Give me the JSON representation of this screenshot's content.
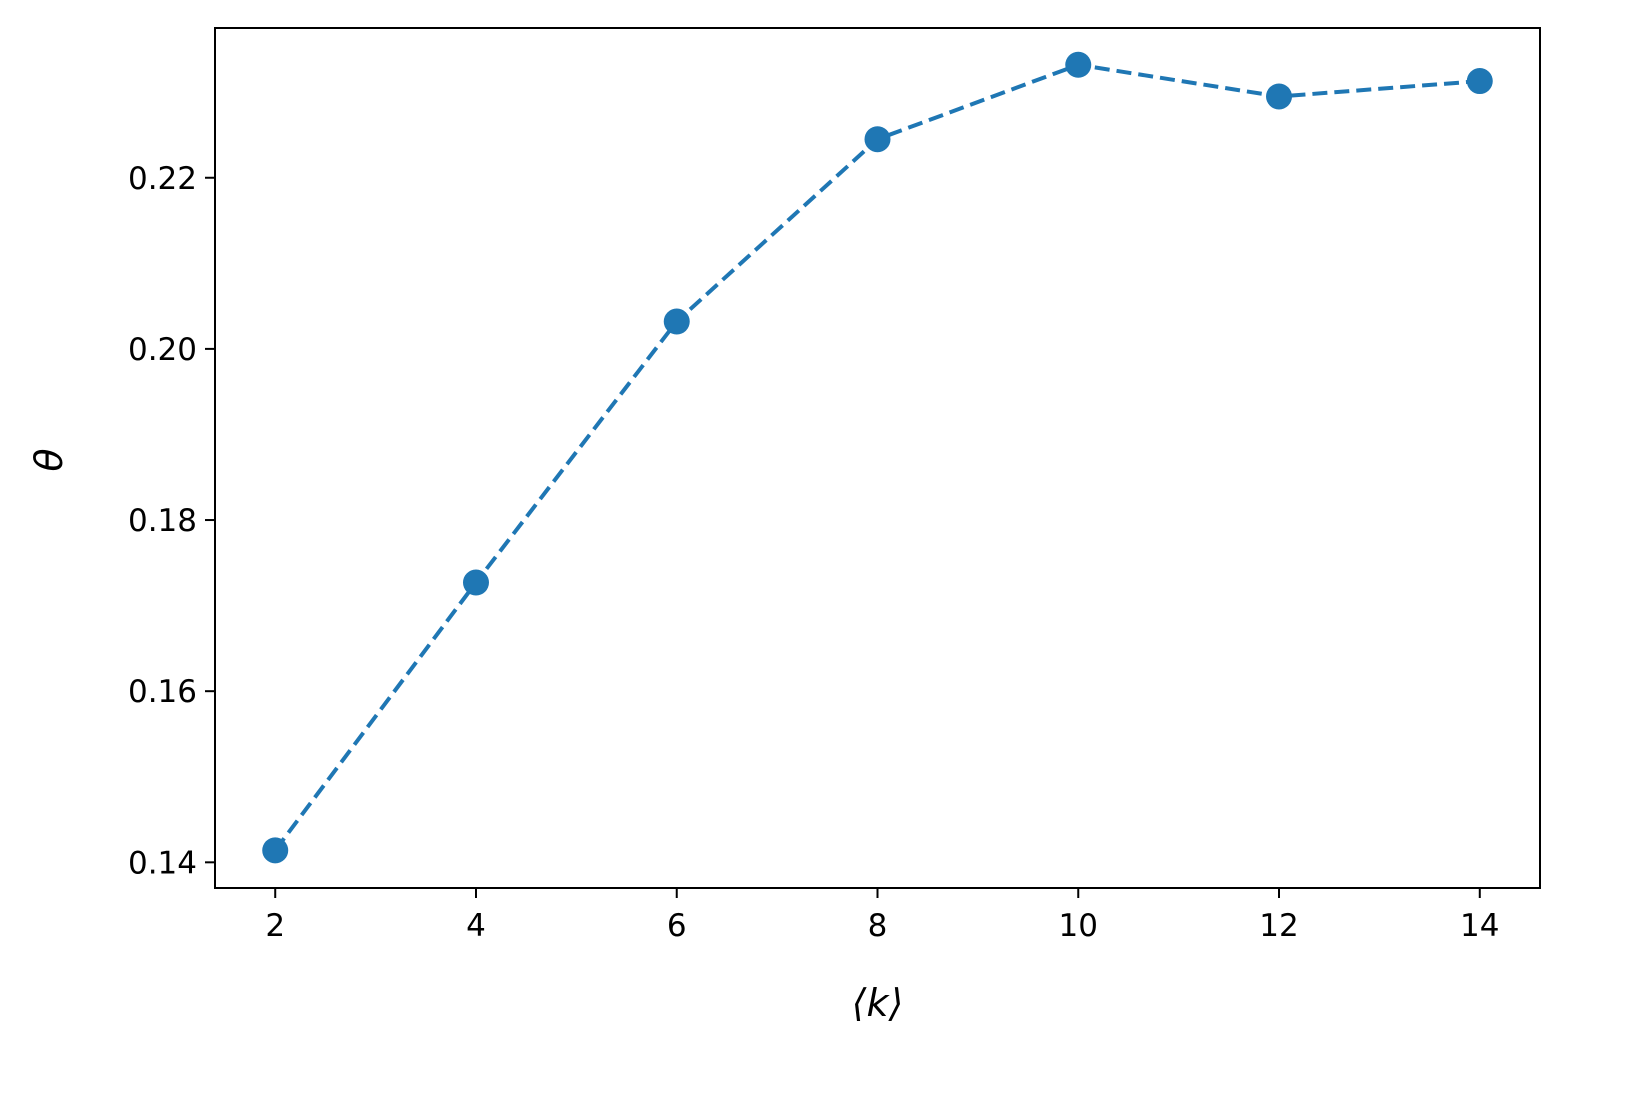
{
  "chart_data": {
    "type": "line",
    "title": "",
    "xlabel": "⟨k⟩",
    "ylabel": "θ",
    "xlim": [
      1.4,
      14.6
    ],
    "ylim": [
      0.137,
      0.2375
    ],
    "xticks": [
      2,
      4,
      6,
      8,
      10,
      12,
      14
    ],
    "xtick_labels": [
      "2",
      "4",
      "6",
      "8",
      "10",
      "12",
      "14"
    ],
    "yticks": [
      0.14,
      0.16,
      0.18,
      0.2,
      0.22
    ],
    "ytick_labels": [
      "0.14",
      "0.16",
      "0.18",
      "0.20",
      "0.22"
    ],
    "grid": false,
    "line_style": "dashed",
    "marker": "circle",
    "colors": {
      "series": "#1f77b4",
      "axes": "#000000"
    },
    "series": [
      {
        "x": [
          2,
          4,
          6,
          8,
          10,
          12,
          14
        ],
        "values": [
          0.1414,
          0.1727,
          0.2032,
          0.2245,
          0.2332,
          0.2295,
          0.2313
        ]
      }
    ]
  }
}
